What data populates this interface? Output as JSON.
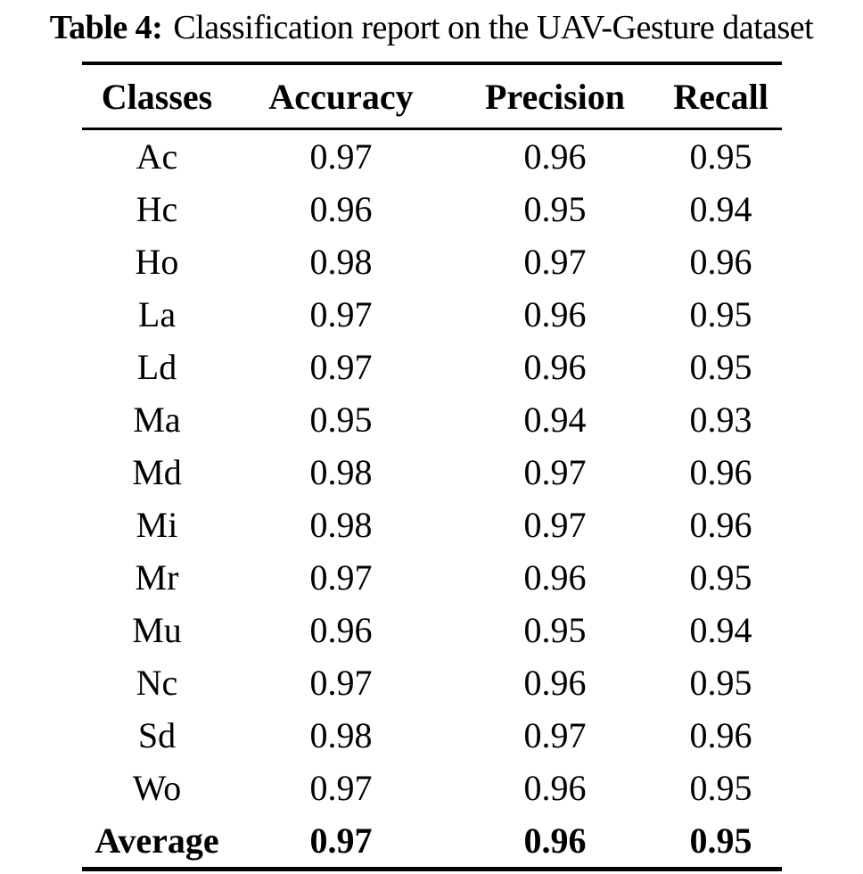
{
  "caption": {
    "label": "Table 4:",
    "text": "Classification report on the UAV-Gesture dataset"
  },
  "table": {
    "columns": [
      "Classes",
      "Accuracy",
      "Precision",
      "Recall"
    ],
    "rows": [
      [
        "Ac",
        "0.97",
        "0.96",
        "0.95"
      ],
      [
        "Hc",
        "0.96",
        "0.95",
        "0.94"
      ],
      [
        "Ho",
        "0.98",
        "0.97",
        "0.96"
      ],
      [
        "La",
        "0.97",
        "0.96",
        "0.95"
      ],
      [
        "Ld",
        "0.97",
        "0.96",
        "0.95"
      ],
      [
        "Ma",
        "0.95",
        "0.94",
        "0.93"
      ],
      [
        "Md",
        "0.98",
        "0.97",
        "0.96"
      ],
      [
        "Mi",
        "0.98",
        "0.97",
        "0.96"
      ],
      [
        "Mr",
        "0.97",
        "0.96",
        "0.95"
      ],
      [
        "Mu",
        "0.96",
        "0.95",
        "0.94"
      ],
      [
        "Nc",
        "0.97",
        "0.96",
        "0.95"
      ],
      [
        "Sd",
        "0.98",
        "0.97",
        "0.96"
      ],
      [
        "Wo",
        "0.97",
        "0.96",
        "0.95"
      ]
    ],
    "average_row": [
      "Average",
      "0.97",
      "0.96",
      "0.95"
    ]
  },
  "colors": {
    "text": "#000000",
    "background": "#ffffff",
    "rule": "#000000"
  }
}
